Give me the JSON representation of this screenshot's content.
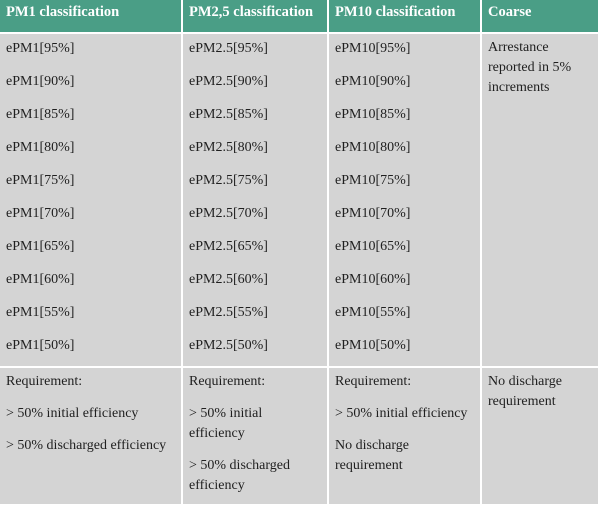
{
  "headers": [
    "PM1 classification",
    "PM2,5 classification",
    "PM10 classification",
    "Coarse"
  ],
  "pm1": [
    "ePM1[95%]",
    "ePM1[90%]",
    "ePM1[85%]",
    "ePM1[80%]",
    "ePM1[75%]",
    "ePM1[70%]",
    "ePM1[65%]",
    "ePM1[60%]",
    "ePM1[55%]",
    "ePM1[50%]"
  ],
  "pm25": [
    "ePM2.5[95%]",
    "ePM2.5[90%]",
    "ePM2.5[85%]",
    "ePM2.5[80%]",
    "ePM2.5[75%]",
    "ePM2.5[70%]",
    "ePM2.5[65%]",
    "ePM2.5[60%]",
    "ePM2.5[55%]",
    "ePM2.5[50%]"
  ],
  "pm10": [
    "ePM10[95%]",
    "ePM10[90%]",
    "ePM10[85%]",
    "ePM10[80%]",
    "ePM10[75%]",
    "ePM10[70%]",
    "ePM10[65%]",
    "ePM10[60%]",
    "ePM10[55%]",
    "ePM10[50%]"
  ],
  "coarse_text": "Arrestance reported in 5% increments",
  "requirements": {
    "pm1": [
      "Requirement:",
      "> 50% initial efficiency",
      "> 50% discharged efficiency"
    ],
    "pm25": [
      "Requirement:",
      "> 50% initial efficiency",
      "> 50% discharged efficiency"
    ],
    "pm10": [
      "Requirement:",
      "> 50% initial efficiency",
      "No discharge requirement"
    ],
    "coarse": "No discharge requirement"
  }
}
